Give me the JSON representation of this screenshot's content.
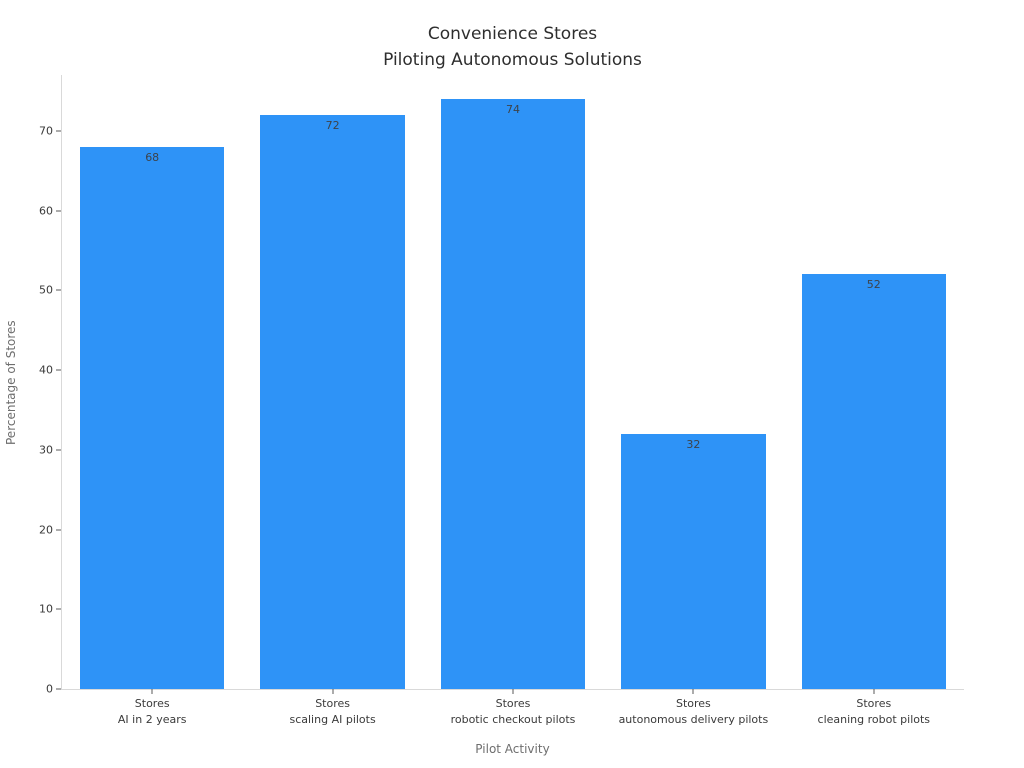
{
  "chart_data": {
    "type": "bar",
    "title": "Convenience Stores\nPiloting Autonomous Solutions",
    "title_lines": [
      "Convenience Stores",
      "Piloting Autonomous Solutions"
    ],
    "xlabel": "Pilot Activity",
    "ylabel": "Percentage of Stores",
    "categories": [
      [
        "Stores",
        "AI in 2 years"
      ],
      [
        "Stores",
        "scaling AI pilots"
      ],
      [
        "Stores",
        "robotic checkout pilots"
      ],
      [
        "Stores",
        "autonomous delivery pilots"
      ],
      [
        "Stores",
        "cleaning robot pilots"
      ]
    ],
    "values": [
      68,
      72,
      74,
      32,
      52
    ],
    "yticks": [
      0,
      10,
      20,
      30,
      40,
      50,
      60,
      70
    ],
    "ylim": [
      0,
      77
    ],
    "bar_color": "#2E93F7",
    "bar_width_fraction": 0.8,
    "grid": false,
    "legend_position": "none",
    "background_color": "#ffffff"
  }
}
